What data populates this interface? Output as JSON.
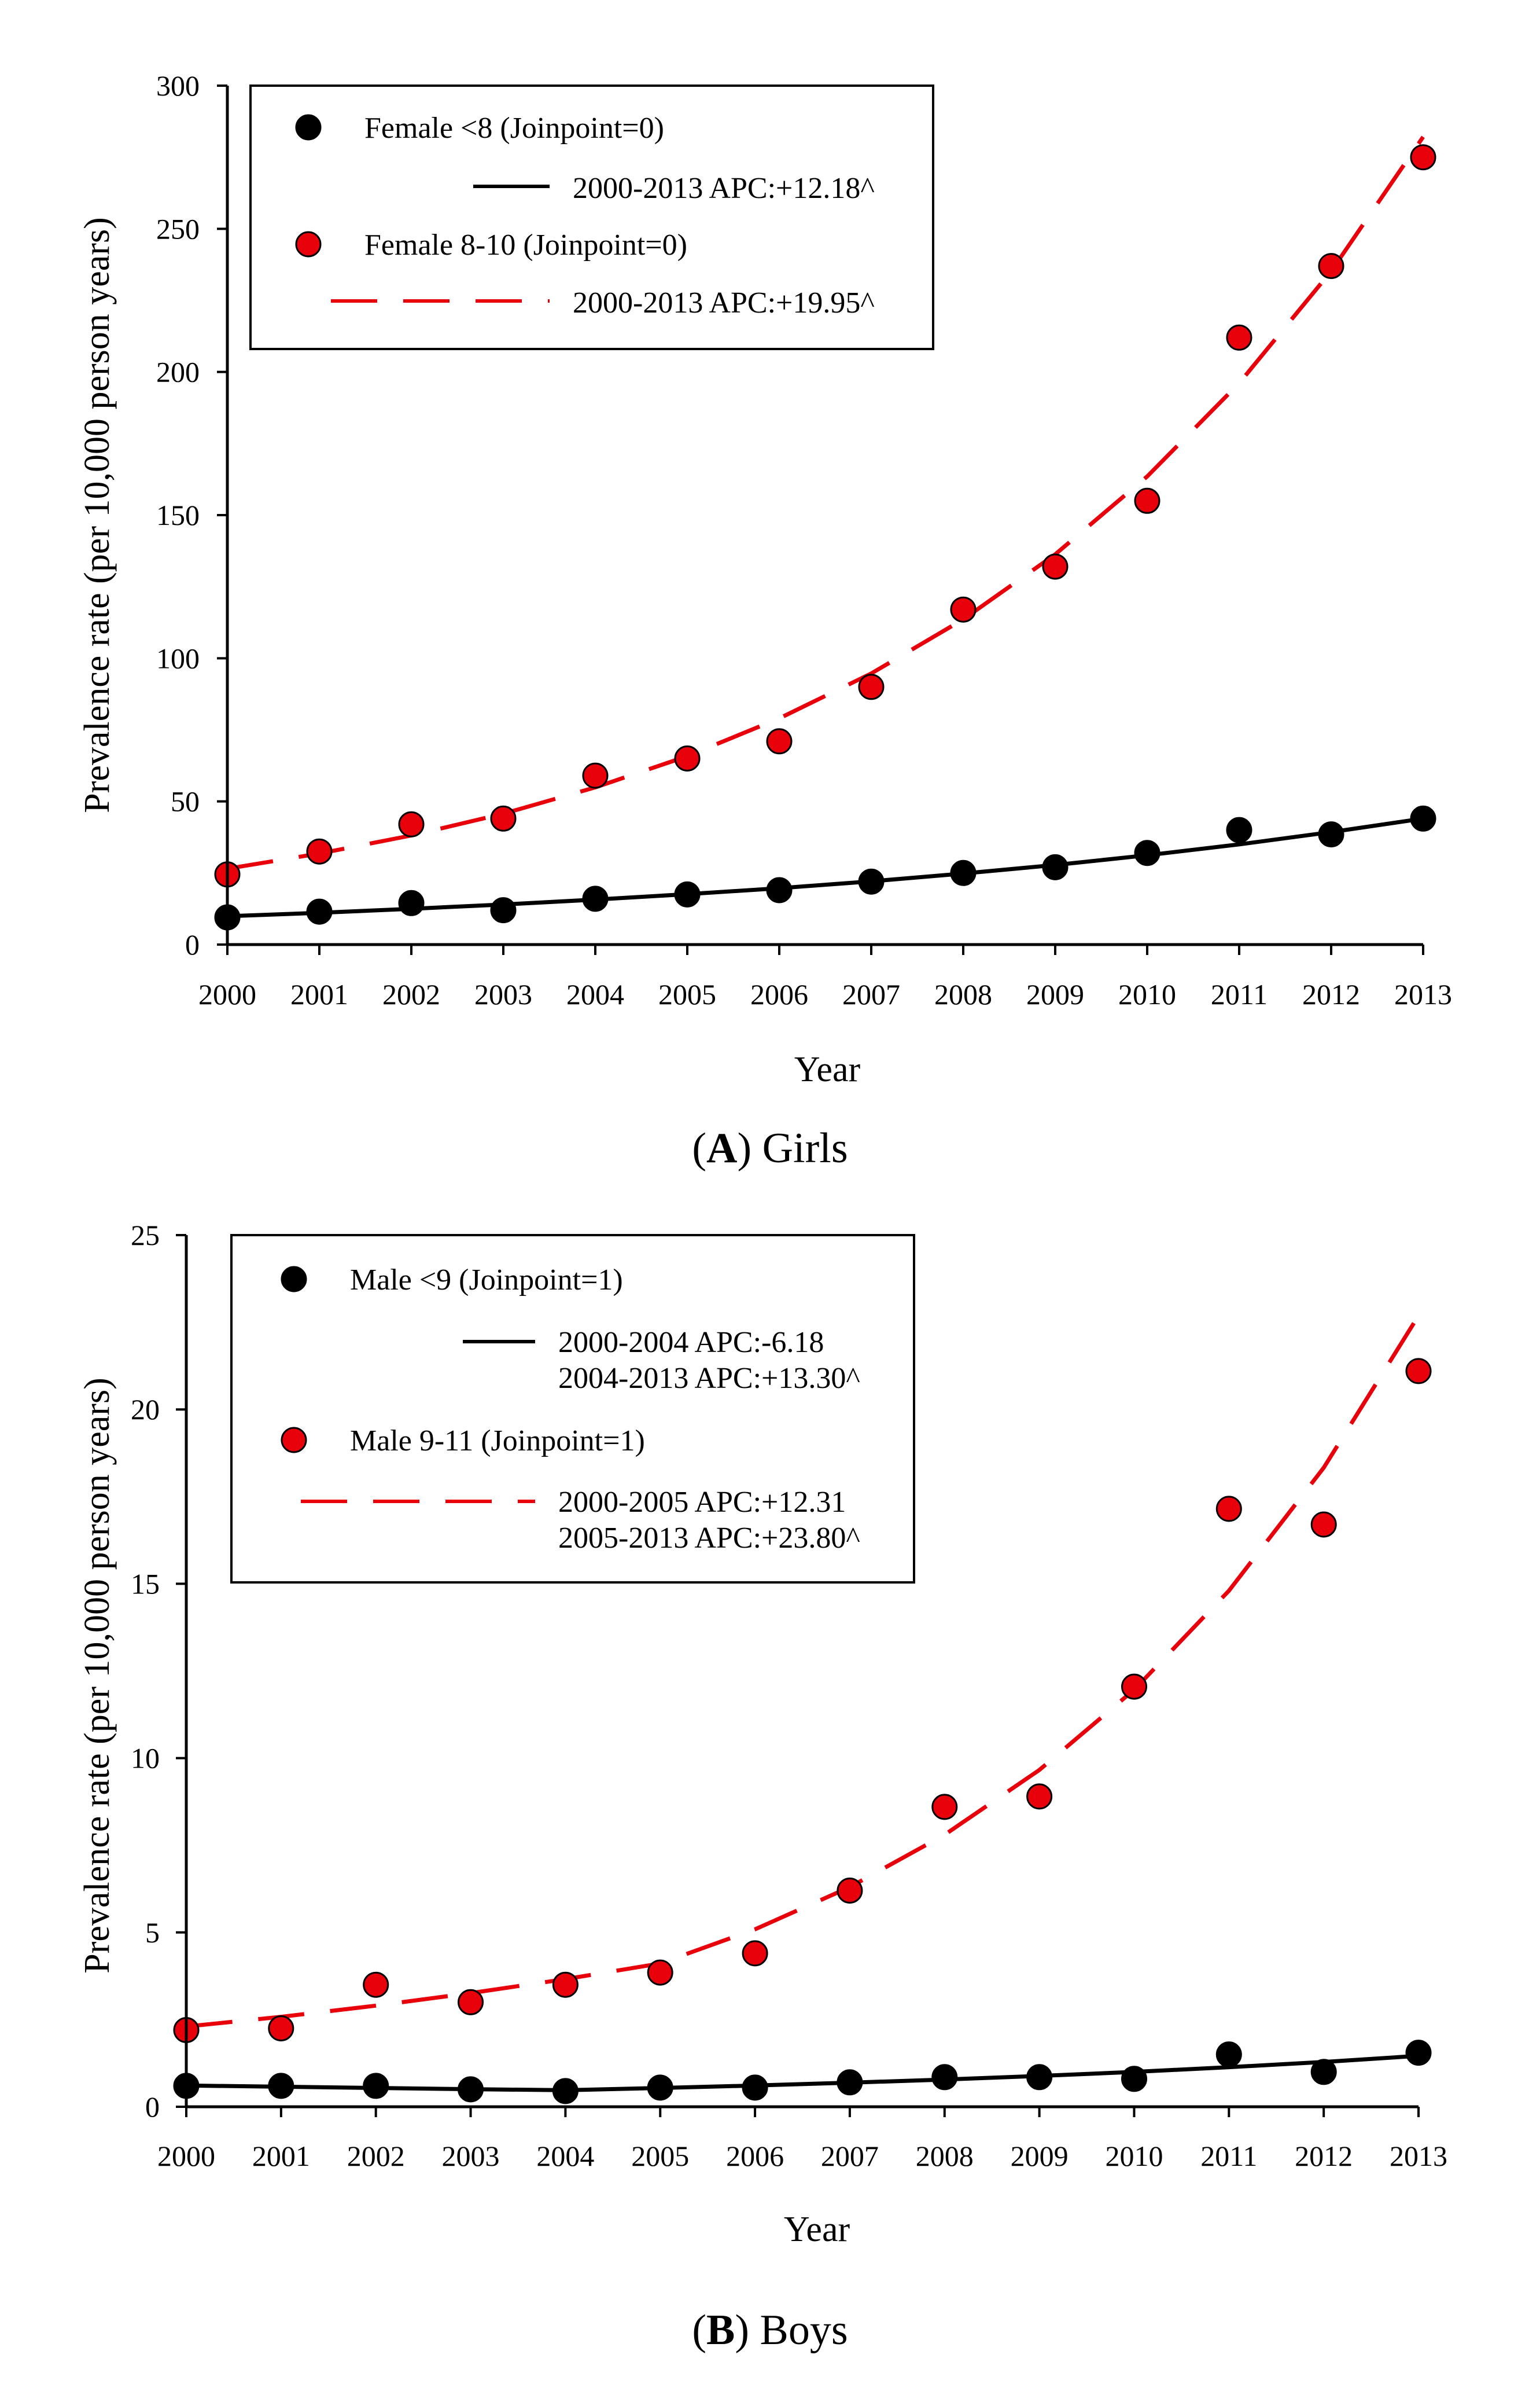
{
  "figure": {
    "panel_a_caption": {
      "open": "(",
      "letter": "A",
      "rest": ") Girls"
    },
    "panel_b_caption": {
      "open": "(",
      "letter": "B",
      "rest": ") Boys"
    }
  },
  "colors": {
    "female_lt8": "#000000",
    "female_8_10": "#e8000b",
    "male_lt9": "#000000",
    "male_9_11": "#e8000b",
    "axis": "#000000",
    "background": "#ffffff"
  },
  "chart_data": [
    {
      "type": "scatter",
      "panel": "A",
      "title": "Girls",
      "xlabel": "Year",
      "ylabel": "Prevalence rate (per 10,000 person years)",
      "xlim": [
        2000,
        2013
      ],
      "ylim": [
        0,
        300
      ],
      "x_ticks": [
        2000,
        2001,
        2002,
        2003,
        2004,
        2005,
        2006,
        2007,
        2008,
        2009,
        2010,
        2011,
        2012,
        2013
      ],
      "y_ticks": [
        0,
        50,
        100,
        150,
        200,
        250,
        300
      ],
      "legend_position": "top-left",
      "series": [
        {
          "name": "Female <8 (Joinpoint=0)",
          "color": "#000000",
          "marker": "circle",
          "x": [
            2000,
            2001,
            2002,
            2003,
            2004,
            2005,
            2006,
            2007,
            2008,
            2009,
            2010,
            2011,
            2012,
            2013
          ],
          "values": [
            9.5,
            11.5,
            14.5,
            12,
            16,
            17.5,
            19,
            22,
            25,
            27,
            32,
            40,
            38.5,
            44
          ]
        },
        {
          "name": "Female 8-10 (Joinpoint=0)",
          "color": "#e8000b",
          "marker": "circle",
          "x": [
            2000,
            2001,
            2002,
            2003,
            2004,
            2005,
            2006,
            2007,
            2008,
            2009,
            2010,
            2011,
            2012,
            2013
          ],
          "values": [
            24.5,
            32.5,
            42,
            44,
            59,
            65,
            71,
            90,
            117,
            132,
            155,
            212,
            237,
            275
          ]
        }
      ],
      "trend_lines": [
        {
          "label": "2000-2013 APC:+12.18^",
          "color": "#000000",
          "style": "solid",
          "x": [
            2000,
            2001,
            2002,
            2003,
            2004,
            2005,
            2006,
            2007,
            2008,
            2009,
            2010,
            2011,
            2012,
            2013
          ],
          "values": [
            9.9,
            11.1,
            12.5,
            14.0,
            15.7,
            17.6,
            19.7,
            22.1,
            24.8,
            27.8,
            31.2,
            35.0,
            39.3,
            44.0
          ]
        },
        {
          "label": "2000-2013 APC:+19.95^",
          "color": "#e8000b",
          "style": "dashed",
          "x": [
            2000,
            2001,
            2002,
            2003,
            2004,
            2005,
            2006,
            2007,
            2008,
            2009,
            2010,
            2011,
            2012,
            2013
          ],
          "values": [
            26.5,
            31.8,
            38.1,
            45.7,
            54.9,
            65.8,
            79.0,
            94.7,
            113.6,
            136.3,
            163.5,
            196.1,
            235.2,
            282.1
          ]
        }
      ]
    },
    {
      "type": "scatter",
      "panel": "B",
      "title": "Boys",
      "xlabel": "Year",
      "ylabel": "Prevalence rate (per 10,000 person years)",
      "xlim": [
        2000,
        2013
      ],
      "ylim": [
        0,
        25
      ],
      "x_ticks": [
        2000,
        2001,
        2002,
        2003,
        2004,
        2005,
        2006,
        2007,
        2008,
        2009,
        2010,
        2011,
        2012,
        2013
      ],
      "y_ticks": [
        0,
        5,
        10,
        15,
        20,
        25
      ],
      "legend_position": "top-left",
      "series": [
        {
          "name": "Male <9 (Joinpoint=1)",
          "color": "#000000",
          "marker": "circle",
          "x": [
            2000,
            2001,
            2002,
            2003,
            2004,
            2005,
            2006,
            2007,
            2008,
            2009,
            2010,
            2011,
            2012,
            2013
          ],
          "values": [
            0.6,
            0.6,
            0.6,
            0.5,
            0.45,
            0.55,
            0.55,
            0.7,
            0.85,
            0.85,
            0.8,
            1.5,
            1.0,
            1.55
          ]
        },
        {
          "name": "Male 9-11 (Joinpoint=1)",
          "color": "#e8000b",
          "marker": "circle",
          "x": [
            2000,
            2001,
            2002,
            2003,
            2004,
            2005,
            2006,
            2007,
            2008,
            2009,
            2010,
            2011,
            2012,
            2013
          ],
          "values": [
            2.2,
            2.25,
            3.5,
            3.0,
            3.5,
            3.85,
            4.4,
            6.2,
            8.6,
            8.9,
            12.05,
            17.15,
            16.7,
            21.1
          ]
        }
      ],
      "trend_lines": [
        {
          "label": "2000-2004 APC:-6.18",
          "label_line2": "2004-2013 APC:+13.30^",
          "color": "#000000",
          "style": "solid",
          "x": [
            2000,
            2001,
            2002,
            2003,
            2004,
            2005,
            2006,
            2007,
            2008,
            2009,
            2010,
            2011,
            2012,
            2013
          ],
          "values": [
            0.61,
            0.575,
            0.54,
            0.505,
            0.475,
            0.54,
            0.61,
            0.69,
            0.78,
            0.885,
            1.0,
            1.135,
            1.285,
            1.46
          ]
        },
        {
          "label": "2000-2005 APC:+12.31",
          "label_line2": "2005-2013 APC:+23.80^",
          "color": "#e8000b",
          "style": "dashed",
          "x": [
            2000,
            2001,
            2002,
            2003,
            2004,
            2005,
            2006,
            2007,
            2008,
            2009,
            2010,
            2011,
            2012,
            2013
          ],
          "values": [
            2.3,
            2.58,
            2.9,
            3.26,
            3.66,
            4.11,
            5.09,
            6.3,
            7.8,
            9.66,
            11.96,
            14.8,
            18.33,
            22.69
          ]
        }
      ]
    }
  ]
}
